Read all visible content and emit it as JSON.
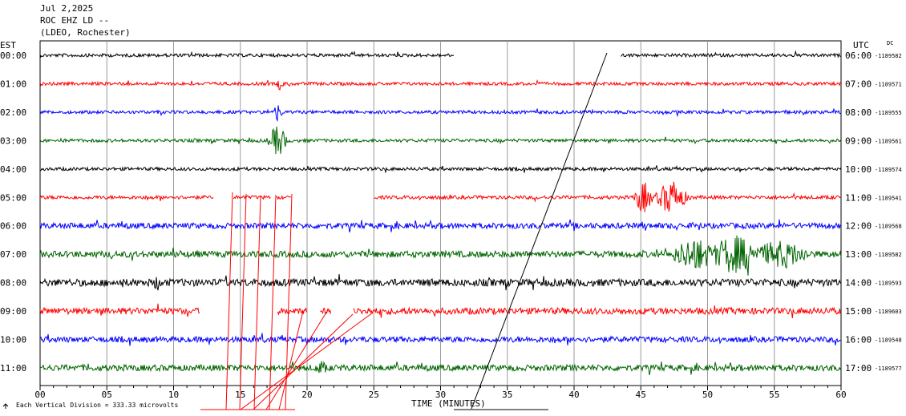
{
  "header": {
    "date": "Jul 2,2025",
    "station": "ROC EHZ LD --",
    "network": "(LDEO, Rochester)"
  },
  "chart_data": {
    "type": "line",
    "left_timezone": "EST",
    "right_timezone": "UTC",
    "dc_label": "DC",
    "xlabel": "TIME (MINUTES)",
    "scale_note": "Each Vertical Division =  333.33 microvolts",
    "xlim": [
      0,
      60
    ],
    "x_ticks": [
      "00",
      "05",
      "10",
      "15",
      "20",
      "25",
      "30",
      "35",
      "40",
      "45",
      "50",
      "55",
      "60"
    ],
    "colors": [
      "#000000",
      "#ff0000",
      "#0000ff",
      "#006400"
    ],
    "rows": [
      {
        "est": "00:00",
        "utc": "06:00",
        "dc": "-1189582",
        "color": "#000000",
        "amp": 2.0,
        "segments": [
          [
            0,
            31.0
          ],
          [
            43.5,
            60
          ]
        ],
        "events": []
      },
      {
        "est": "01:00",
        "utc": "07:00",
        "dc": "-1189571",
        "color": "#ff0000",
        "amp": 2.0,
        "segments": [
          [
            0,
            60
          ]
        ],
        "events": [
          {
            "t": 18.0,
            "a": 9,
            "d": 0.25
          }
        ]
      },
      {
        "est": "02:00",
        "utc": "08:00",
        "dc": "-1189555",
        "color": "#0000ff",
        "amp": 2.0,
        "segments": [
          [
            0,
            60
          ]
        ],
        "events": [
          {
            "t": 17.8,
            "a": 12,
            "d": 0.3
          }
        ]
      },
      {
        "est": "03:00",
        "utc": "09:00",
        "dc": "-1189561",
        "color": "#006400",
        "amp": 2.0,
        "segments": [
          [
            0,
            60
          ]
        ],
        "events": [
          {
            "t": 17.8,
            "a": 20,
            "d": 0.6
          }
        ]
      },
      {
        "est": "04:00",
        "utc": "10:00",
        "dc": "-1189574",
        "color": "#000000",
        "amp": 2.0,
        "segments": [
          [
            0,
            60
          ]
        ],
        "events": []
      },
      {
        "est": "05:00",
        "utc": "11:00",
        "dc": "-1189541",
        "color": "#ff0000",
        "amp": 2.2,
        "segments": [
          [
            0,
            13.0
          ],
          [
            14.5,
            17.3
          ],
          [
            17.7,
            18.8
          ],
          [
            25.0,
            60
          ]
        ],
        "events": [
          {
            "t": 45.2,
            "a": 20,
            "d": 0.6
          },
          {
            "t": 47.3,
            "a": 22,
            "d": 1.0
          }
        ]
      },
      {
        "est": "06:00",
        "utc": "12:00",
        "dc": "-1189568",
        "color": "#0000ff",
        "amp": 3.5,
        "segments": [
          [
            0,
            60
          ]
        ],
        "events": []
      },
      {
        "est": "07:00",
        "utc": "13:00",
        "dc": "-1189582",
        "color": "#006400",
        "amp": 4.0,
        "segments": [
          [
            0,
            60
          ]
        ],
        "events": [
          {
            "t": 49.0,
            "a": 22,
            "d": 1.5
          },
          {
            "t": 52.0,
            "a": 24,
            "d": 1.8
          },
          {
            "t": 55.5,
            "a": 18,
            "d": 2.0
          }
        ]
      },
      {
        "est": "08:00",
        "utc": "14:00",
        "dc": "-1189593",
        "color": "#000000",
        "amp": 4.5,
        "segments": [
          [
            0,
            60
          ]
        ],
        "events": [
          {
            "t": 8.8,
            "a": 10,
            "d": 0.4
          }
        ]
      },
      {
        "est": "09:00",
        "utc": "15:00",
        "dc": "-1189603",
        "color": "#ff0000",
        "amp": 4.0,
        "segments": [
          [
            0,
            12.0
          ],
          [
            17.8,
            20.0
          ],
          [
            21.0,
            21.8
          ],
          [
            23.5,
            60
          ]
        ],
        "events": []
      },
      {
        "est": "10:00",
        "utc": "16:00",
        "dc": "-1189548",
        "color": "#0000ff",
        "amp": 3.5,
        "segments": [
          [
            0,
            60
          ]
        ],
        "events": []
      },
      {
        "est": "11:00",
        "utc": "17:00",
        "dc": "-1189577",
        "color": "#006400",
        "amp": 3.8,
        "segments": [
          [
            0,
            60
          ]
        ],
        "events": [
          {
            "t": 21.0,
            "a": 9,
            "d": 0.5
          }
        ]
      }
    ],
    "grid": true
  }
}
